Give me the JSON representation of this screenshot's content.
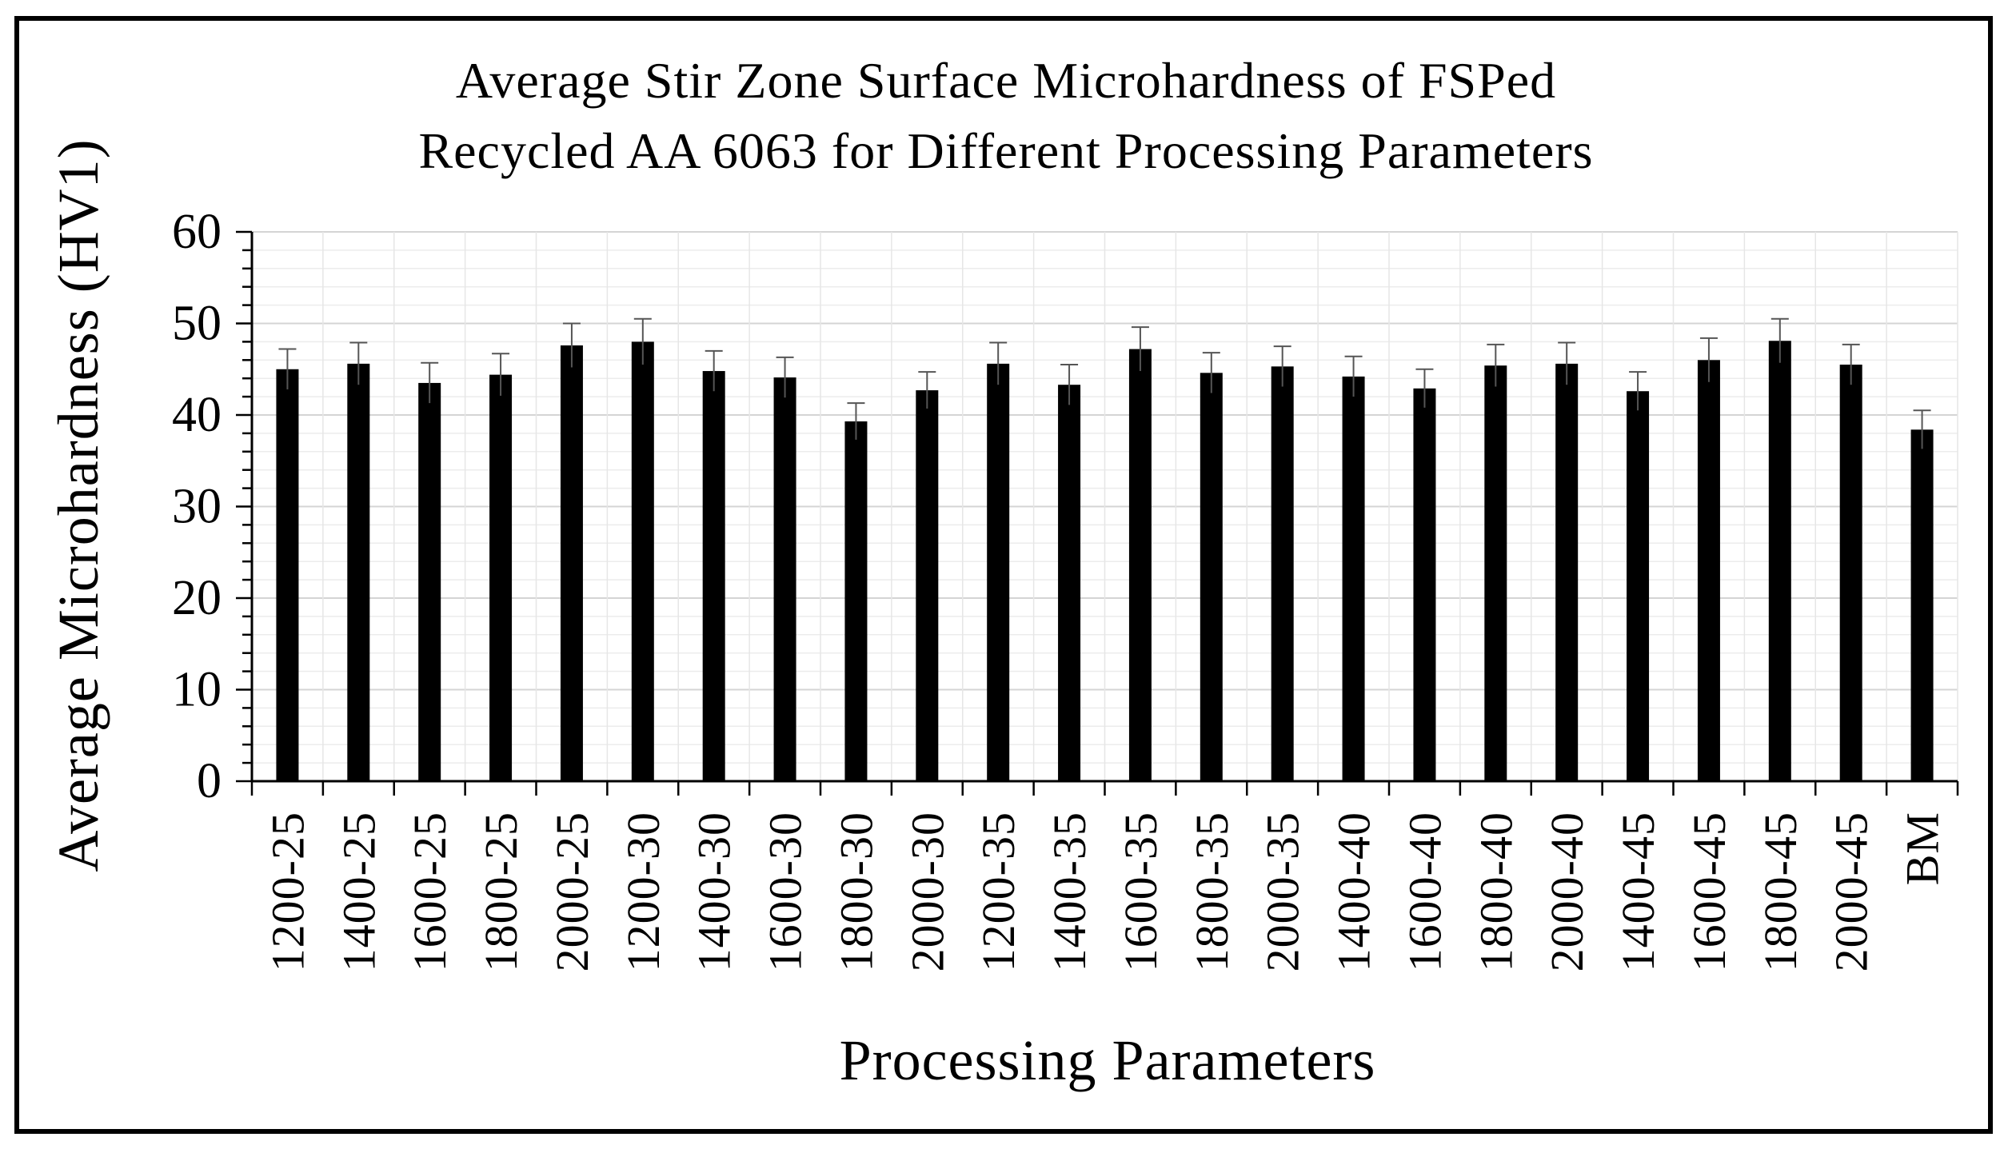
{
  "chart_data": {
    "type": "bar",
    "title_lines": [
      "Average Stir Zone Surface Microhardness of FSPed",
      "Recycled AA 6063 for Different Processing Parameters"
    ],
    "xlabel": "Processing Parameters",
    "ylabel": "Average Microhardness (HV1)",
    "ylim": [
      0,
      60
    ],
    "yticks": [
      "0",
      "10",
      "20",
      "30",
      "40",
      "50",
      "60"
    ],
    "grid": true,
    "legend": "none",
    "categories": [
      "1200-25",
      "1400-25",
      "1600-25",
      "1800-25",
      "2000-25",
      "1200-30",
      "1400-30",
      "1600-30",
      "1800-30",
      "2000-30",
      "1200-35",
      "1400-35",
      "1600-35",
      "1800-35",
      "2000-35",
      "1400-40",
      "1600-40",
      "1800-40",
      "2000-40",
      "1400-45",
      "1600-45",
      "1800-45",
      "2000-45",
      "BM"
    ],
    "series": [
      {
        "name": "Average Microhardness",
        "color": "#000000",
        "values": [
          45.0,
          45.6,
          43.5,
          44.4,
          47.6,
          48.0,
          44.8,
          44.1,
          39.3,
          42.7,
          45.6,
          43.3,
          47.2,
          44.6,
          45.3,
          44.2,
          42.9,
          45.4,
          45.6,
          42.6,
          46.0,
          48.1,
          45.5,
          38.4
        ],
        "errors": [
          2.2,
          2.3,
          2.2,
          2.3,
          2.4,
          2.5,
          2.2,
          2.2,
          2.0,
          2.0,
          2.3,
          2.2,
          2.4,
          2.2,
          2.2,
          2.2,
          2.1,
          2.3,
          2.3,
          2.1,
          2.4,
          2.4,
          2.2,
          2.1
        ]
      }
    ]
  }
}
